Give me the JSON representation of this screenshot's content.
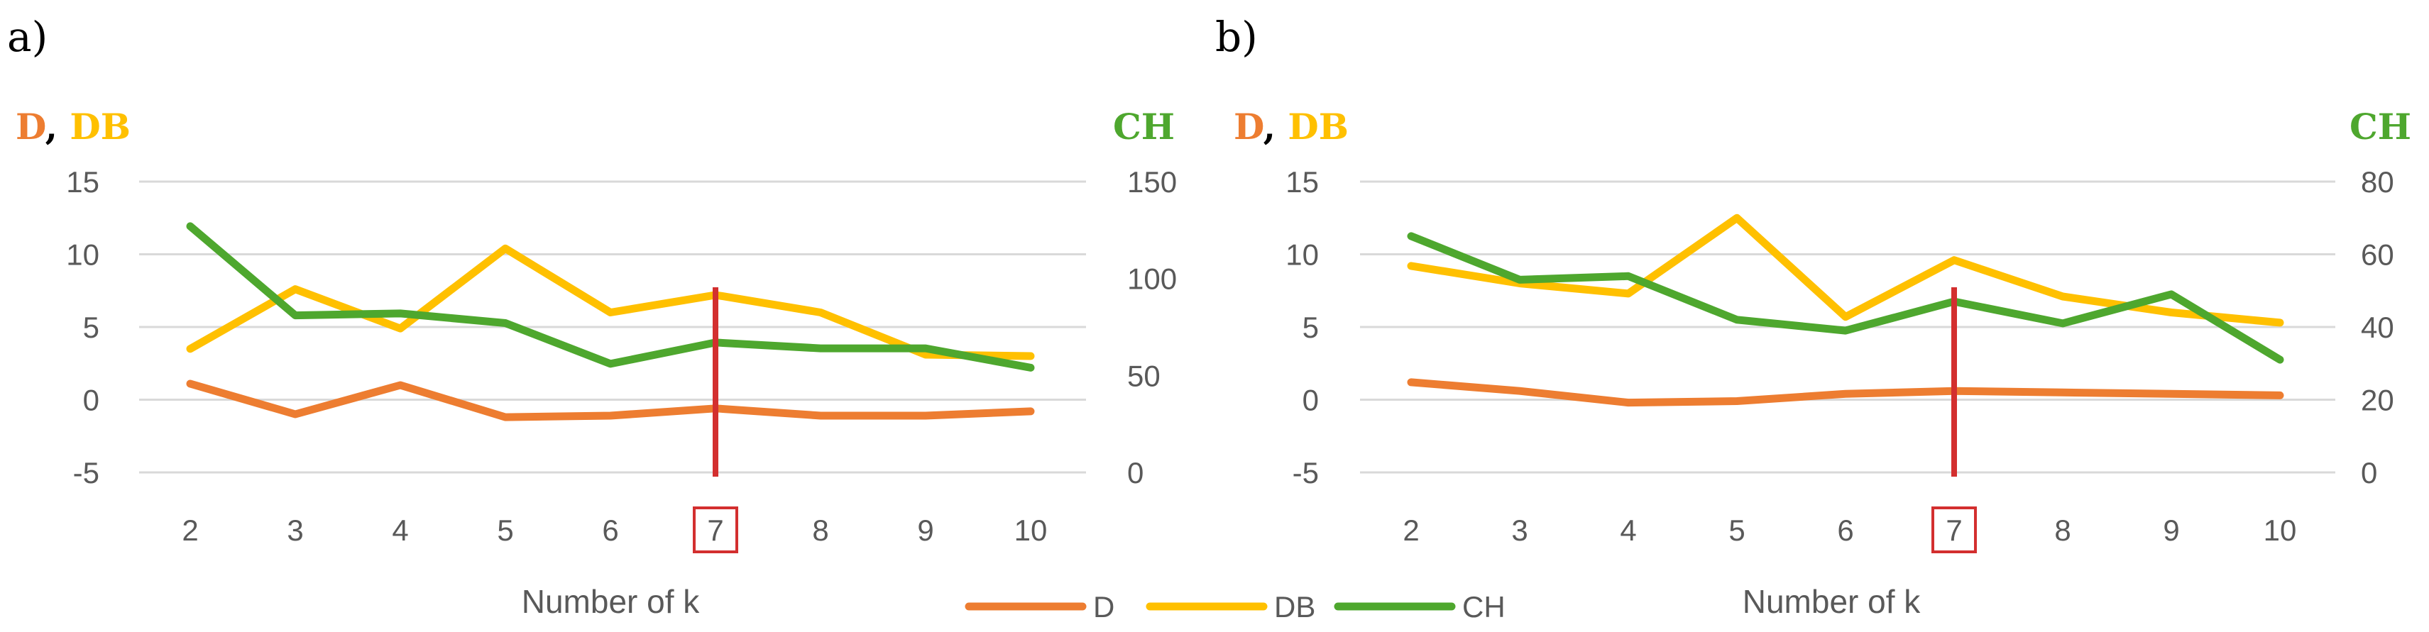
{
  "colors": {
    "D": "#ED7D31",
    "DB": "#FFC000",
    "CH": "#4EA72E",
    "marker": "#D32F2F",
    "grid": "#D9D9D9",
    "text": "#595959"
  },
  "chart_data": [
    {
      "type": "line",
      "panel_label": "a)",
      "left_title": {
        "d": "D",
        "sep": ", ",
        "db": "DB"
      },
      "right_title": "CH",
      "xlabel": "Number of k",
      "categories": [
        "2",
        "3",
        "4",
        "5",
        "6",
        "7",
        "8",
        "9",
        "10"
      ],
      "highlight_category": "7",
      "ylim_left": [
        -5,
        15
      ],
      "yticks_left": [
        "-5",
        "0",
        "5",
        "10",
        "15"
      ],
      "ylim_right": [
        0,
        150
      ],
      "yticks_right": [
        "0",
        "50",
        "100",
        "150"
      ],
      "series": [
        {
          "name": "D",
          "axis": "left",
          "values": [
            1.1,
            -1.0,
            1.0,
            -1.2,
            -1.1,
            -0.6,
            -1.1,
            -1.1,
            -0.8
          ]
        },
        {
          "name": "DB",
          "axis": "left",
          "values": [
            3.5,
            7.6,
            4.9,
            10.4,
            6.0,
            7.2,
            6.0,
            3.1,
            3.0
          ]
        },
        {
          "name": "CH",
          "axis": "right",
          "values": [
            127,
            81,
            82,
            77,
            56,
            67,
            64,
            64,
            54
          ]
        }
      ]
    },
    {
      "type": "line",
      "panel_label": "b)",
      "left_title": {
        "d": "D",
        "sep": ", ",
        "db": "DB"
      },
      "right_title": "CH",
      "xlabel": "Number of k",
      "categories": [
        "2",
        "3",
        "4",
        "5",
        "6",
        "7",
        "8",
        "9",
        "10"
      ],
      "highlight_category": "7",
      "ylim_left": [
        -5,
        15
      ],
      "yticks_left": [
        "-5",
        "0",
        "5",
        "10",
        "15"
      ],
      "ylim_right": [
        0,
        80
      ],
      "yticks_right": [
        "0",
        "20",
        "40",
        "60",
        "80"
      ],
      "series": [
        {
          "name": "D",
          "axis": "left",
          "values": [
            1.2,
            0.6,
            -0.2,
            -0.1,
            0.4,
            0.6,
            0.5,
            0.4,
            0.3
          ]
        },
        {
          "name": "DB",
          "axis": "left",
          "values": [
            9.2,
            8.0,
            7.3,
            12.5,
            5.7,
            9.6,
            7.1,
            6.0,
            5.3
          ]
        },
        {
          "name": "CH",
          "axis": "right",
          "values": [
            65,
            53,
            54,
            42,
            39,
            47,
            41,
            49,
            31
          ]
        }
      ]
    }
  ],
  "legend": [
    {
      "name": "D",
      "label": "D"
    },
    {
      "name": "DB",
      "label": "DB"
    },
    {
      "name": "CH",
      "label": "CH"
    }
  ]
}
